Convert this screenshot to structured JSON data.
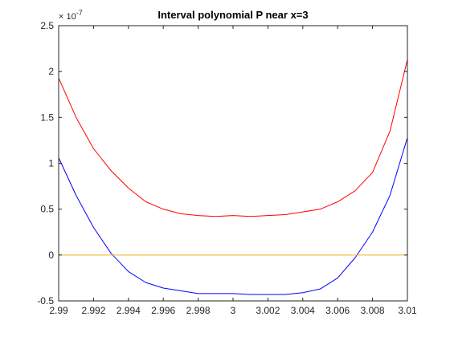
{
  "chart_data": {
    "type": "line",
    "title": "Interval polynomial P near x=3",
    "xlabel": "",
    "ylabel": "",
    "xlim": [
      2.99,
      3.01
    ],
    "ylim": [
      -0.5,
      2.5
    ],
    "y_exponent_label": "× 10",
    "y_exponent_power": "-7",
    "x_ticks": [
      "2.99",
      "2.992",
      "2.994",
      "2.996",
      "2.998",
      "3",
      "3.002",
      "3.004",
      "3.006",
      "3.008",
      "3.01"
    ],
    "y_ticks": [
      "-0.5",
      "0",
      "0.5",
      "1",
      "1.5",
      "2",
      "2.5"
    ],
    "grid": false,
    "legend": "none",
    "series": [
      {
        "color": "#ff0000",
        "x": [
          2.99,
          2.991,
          2.992,
          2.993,
          2.994,
          2.995,
          2.996,
          2.997,
          2.998,
          2.999,
          3.0,
          3.001,
          3.002,
          3.003,
          3.004,
          3.005,
          3.006,
          3.007,
          3.008,
          3.009,
          3.01
        ],
        "y": [
          1.93,
          1.5,
          1.16,
          0.92,
          0.73,
          0.58,
          0.5,
          0.45,
          0.43,
          0.42,
          0.43,
          0.42,
          0.43,
          0.44,
          0.47,
          0.5,
          0.58,
          0.7,
          0.9,
          1.35,
          2.13
        ]
      },
      {
        "color": "#0000ff",
        "x": [
          2.99,
          2.991,
          2.992,
          2.993,
          2.994,
          2.995,
          2.996,
          2.997,
          2.998,
          2.999,
          3.0,
          3.001,
          3.002,
          3.003,
          3.004,
          3.005,
          3.006,
          3.007,
          3.008,
          3.009,
          3.01
        ],
        "y": [
          1.06,
          0.65,
          0.3,
          0.02,
          -0.18,
          -0.3,
          -0.36,
          -0.39,
          -0.42,
          -0.42,
          -0.42,
          -0.43,
          -0.43,
          -0.43,
          -0.41,
          -0.37,
          -0.25,
          -0.03,
          0.25,
          0.65,
          1.28
        ]
      },
      {
        "color": "#edb120",
        "x": [
          2.99,
          3.01
        ],
        "y": [
          0,
          0
        ]
      }
    ]
  }
}
